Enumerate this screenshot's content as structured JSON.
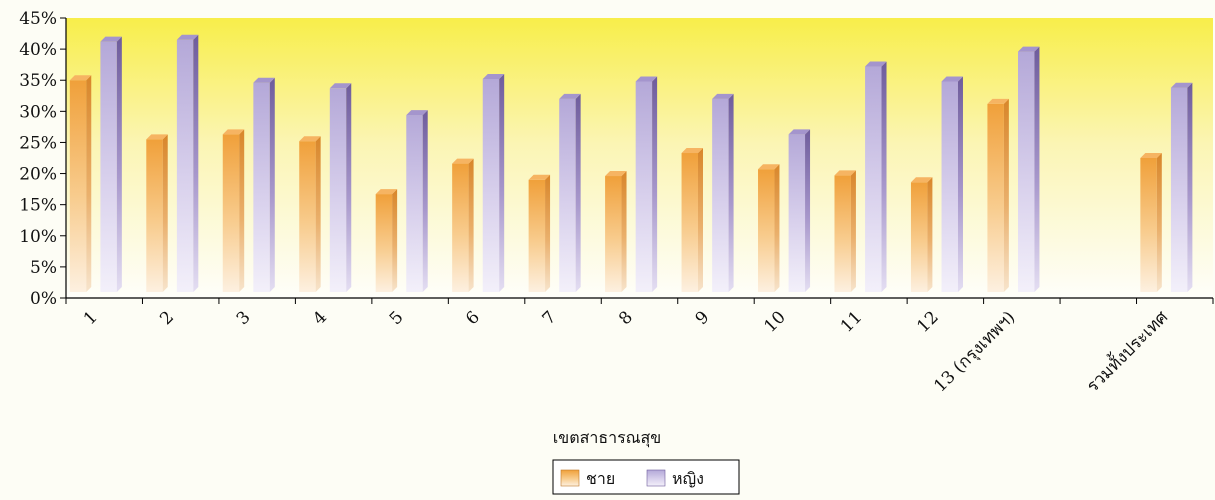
{
  "chart_data": {
    "type": "bar",
    "categories": [
      "1",
      "2",
      "3",
      "4",
      "5",
      "6",
      "7",
      "8",
      "9",
      "10",
      "11",
      "12",
      "13 (กรุงเทพฯ)",
      "",
      "รวมทั้งประเทศ"
    ],
    "series": [
      {
        "name": "ชาย",
        "color": "#f0a040",
        "values": [
          35,
          25.5,
          26.3,
          25.2,
          16.7,
          21.6,
          19,
          19.6,
          23.3,
          20.7,
          19.7,
          18.6,
          31.2,
          null,
          22.5
        ]
      },
      {
        "name": "หญิง",
        "color": "#8a7ab8",
        "values": [
          41.2,
          41.5,
          34.6,
          33.7,
          29.4,
          35.2,
          32,
          34.8,
          32,
          26.3,
          37.2,
          34.8,
          39.6,
          null,
          33.8
        ]
      }
    ],
    "xlabel": "เขตสาธารณสุข",
    "ylabel": "",
    "ylim": [
      0,
      45
    ],
    "ytick_step": 5,
    "y_tick_labels": [
      "0%",
      "5%",
      "10%",
      "15%",
      "20%",
      "25%",
      "30%",
      "35%",
      "40%",
      "45%"
    ],
    "legend_position": "bottom-center",
    "plot_background": "gradient yellow-to-white"
  }
}
